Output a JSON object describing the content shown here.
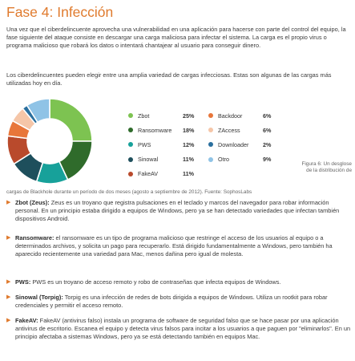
{
  "title": "Fase 4: Infección",
  "para1": "Una vez que el ciberdelincuente aprovecha una vulnerabilidad en una aplicación para hacerse con parte del control del equipo, la fase siguiente del ataque consiste en descargar una carga maliciosa para infectar el sistema. La carga es el propio virus o programa malicioso que robará los datos o intentará chantajear al usuario para conseguir dinero.",
  "para2": "Los ciberdelincuentes pueden elegir entre una amplia variedad de cargas infecciosas. Estas son algunas de las cargas más utilizadas hoy en día.",
  "chart_data": {
    "type": "pie",
    "title": "",
    "categories": [
      "Zbot",
      "Ransomware",
      "PWS",
      "Sinowal",
      "FakeAV",
      "Backdoor",
      "ZAccess",
      "Downloader",
      "Otro"
    ],
    "values": [
      25,
      18,
      12,
      11,
      11,
      6,
      6,
      2,
      9
    ],
    "labels": [
      "25%",
      "18%",
      "12%",
      "11%",
      "11%",
      "6%",
      "6%",
      "2%",
      "9%"
    ],
    "colors": [
      "#7dc351",
      "#2f6b2b",
      "#17a19a",
      "#1e4f5c",
      "#b94a2c",
      "#e8763a",
      "#f5c6a8",
      "#2a6f9e",
      "#8fc3e6"
    ],
    "legend_position": "right"
  },
  "caption_side": "Figura 6: Un desglose de la distribución de",
  "caption_bottom": "cargas de Blackhole durante un período de dos meses (agosto a septiembre de 2012). Fuente: SophosLabs",
  "bullet_mark": "▶",
  "bullets": [
    {
      "term": "Zbot (Zeus):",
      "text": " Zeus es un troyano que registra pulsaciones en el teclado y marcos del navegador para robar información personal. En un principio estaba dirigido a equipos de Windows, pero ya se han detectado variedades que infectan también dispositivos Android."
    },
    {
      "term": "Ransomware:",
      "text": " el ransomware es un tipo de programa malicioso que restringe el acceso de los usuarios al equipo o a determinados archivos, y solicita un pago para recuperarlo. Está dirigido fundamentalmente a Windows, pero también ha aparecido recientemente una variedad para Mac, menos dañina pero igual de molesta."
    },
    {
      "term": "PWS:",
      "text": " PWS es un troyano de acceso remoto y robo de contraseñas que infecta equipos de Windows."
    },
    {
      "term": "Sinowal (Torpig):",
      "text": " Torpig es una infección de redes de bots dirigida a equipos de Windows. Utiliza un rootkit para robar credenciales y permitir el acceso remoto."
    },
    {
      "term": "FakeAV:",
      "text": " FakeAV (antivirus falso) instala un programa de software de seguridad falso que se hace pasar por una aplicación antivirus de escritorio. Escanea el equipo y detecta virus falsos para incitar a los usuarios a que paguen por \"eliminarlos\". En un principio afectaba a sistemas Windows, pero ya se está detectando también en equipos Mac."
    }
  ]
}
